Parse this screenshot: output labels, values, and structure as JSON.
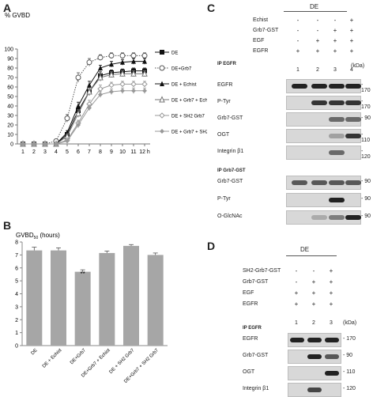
{
  "panels": {
    "a": "A",
    "b": "B",
    "c": "C",
    "d": "D"
  },
  "chartA": {
    "ylabel": "% GVBD",
    "yticks": [
      "0",
      "10",
      "20",
      "30",
      "40",
      "50",
      "60",
      "70",
      "80",
      "90",
      "100"
    ],
    "xticks": [
      "1",
      "2",
      "3",
      "4",
      "5",
      "6",
      "7",
      "8",
      "9",
      "10",
      "11",
      "12 h"
    ],
    "legend": [
      "DE",
      "DE+Grb7",
      "DE + Echist",
      "DE + Grb7 + Echist",
      "DE + SH2 Grb7",
      "DE + Grb7 + SH2 Grb7"
    ]
  },
  "chart_data": [
    {
      "type": "line",
      "x": [
        1,
        2,
        3,
        4,
        5,
        6,
        7,
        8,
        9,
        10,
        11,
        12
      ],
      "xlabel": "",
      "ylabel": "% GVBD",
      "ylim": [
        0,
        100
      ],
      "series": [
        {
          "name": "DE",
          "values": [
            0,
            0,
            0,
            0,
            10,
            35,
            55,
            72,
            75,
            76,
            77,
            77
          ],
          "color": "#111111",
          "marker": "square",
          "dash": "solid",
          "error": [
            0,
            0,
            0,
            0,
            2,
            4,
            4,
            4,
            3,
            3,
            3,
            3
          ]
        },
        {
          "name": "DE+Grb7",
          "values": [
            0,
            0,
            0,
            3,
            27,
            70,
            86,
            91,
            93,
            93,
            93,
            93
          ],
          "color": "#555555",
          "marker": "open-circle",
          "dash": "dotted",
          "error": [
            0,
            0,
            0,
            1,
            4,
            5,
            4,
            3,
            3,
            3,
            3,
            3
          ]
        },
        {
          "name": "DE + Echist",
          "values": [
            0,
            0,
            0,
            0,
            12,
            40,
            62,
            80,
            84,
            86,
            87,
            87
          ],
          "color": "#111111",
          "marker": "triangle",
          "dash": "solid",
          "error": [
            0,
            0,
            0,
            0,
            2,
            4,
            4,
            3,
            3,
            3,
            3,
            3
          ]
        },
        {
          "name": "DE + Grb7 + Echist",
          "values": [
            0,
            0,
            0,
            0,
            8,
            32,
            55,
            70,
            73,
            74,
            74,
            74
          ],
          "color": "#777777",
          "marker": "open-triangle",
          "dash": "solid",
          "error": [
            0,
            0,
            0,
            0,
            2,
            4,
            4,
            4,
            3,
            3,
            3,
            3
          ]
        },
        {
          "name": "DE + SH2 Grb7",
          "values": [
            0,
            0,
            0,
            0,
            4,
            22,
            42,
            58,
            62,
            63,
            63,
            63
          ],
          "color": "#999999",
          "marker": "open-diamond",
          "dash": "solid",
          "error": [
            0,
            0,
            0,
            0,
            2,
            3,
            4,
            4,
            3,
            3,
            3,
            3
          ]
        },
        {
          "name": "DE + Grb7 + SH2 Grb7",
          "values": [
            0,
            0,
            0,
            0,
            3,
            20,
            38,
            52,
            55,
            56,
            56,
            56
          ],
          "color": "#999999",
          "marker": "diamond",
          "dash": "solid",
          "error": [
            0,
            0,
            0,
            0,
            2,
            3,
            3,
            3,
            3,
            3,
            3,
            3
          ]
        }
      ]
    },
    {
      "type": "bar",
      "ylabel": "GVBD50 (hours)",
      "ylim": [
        0,
        8
      ],
      "yticks": [
        "0",
        "1",
        "2",
        "3",
        "4",
        "5",
        "6",
        "7",
        "8"
      ],
      "categories": [
        "DE",
        "DE + Echist",
        "DE+Grb7",
        "DE+Grb7 + Echist",
        "DE + SH2 Grb7",
        "DE+Grb7 + SH2 Grb7"
      ],
      "values": [
        7.35,
        7.35,
        5.7,
        7.15,
        7.7,
        7.0
      ],
      "error": [
        0.25,
        0.2,
        0.15,
        0.15,
        0.1,
        0.15
      ],
      "annotations": [
        {
          "category": "DE+Grb7",
          "text": "**"
        }
      ],
      "color": "#a6a6a6"
    }
  ],
  "chartB": {
    "ylabel_main": "GVBD",
    "ylabel_sub": "50",
    "ylabel_unit": " (hours)",
    "sig": "**"
  },
  "blotC": {
    "header": "DE",
    "kda": "(kDa)",
    "treatments": [
      {
        "label": "Echist",
        "signs": [
          "-",
          "-",
          "-",
          "+"
        ]
      },
      {
        "label": "Grb7-GST",
        "signs": [
          "-",
          "-",
          "+",
          "+"
        ]
      },
      {
        "label": "EGF",
        "signs": [
          "-",
          "+",
          "+",
          "+"
        ]
      },
      {
        "label": "EGFR",
        "signs": [
          "+",
          "+",
          "+",
          "+"
        ]
      }
    ],
    "ip1": "IP EGFR",
    "lanes": [
      "1",
      "2",
      "3",
      "4"
    ],
    "rows1": [
      {
        "label": "EGFR",
        "mw": "- 170"
      },
      {
        "label": "P-Tyr",
        "mw": "- 170"
      },
      {
        "label": "Grb7-GST",
        "mw": "- 90"
      },
      {
        "label": "OGT",
        "mw": "- 110"
      },
      {
        "label": "Integrin β1",
        "mw": "- 120"
      }
    ],
    "ip2": "IP Grb7-GST",
    "rows2": [
      {
        "label": "Grb7-GST",
        "mw": "- 90"
      },
      {
        "label": "P-Tyr",
        "mw": "- 90"
      },
      {
        "label": "O-GlcNAc",
        "mw": "- 90"
      }
    ]
  },
  "blotD": {
    "header": "DE",
    "kda": "(kDa)",
    "treatments": [
      {
        "label": "SH2-Grb7-GST",
        "signs": [
          "-",
          "-",
          "+"
        ]
      },
      {
        "label": "Grb7-GST",
        "signs": [
          "-",
          "+",
          "+"
        ]
      },
      {
        "label": "EGF",
        "signs": [
          "+",
          "+",
          "+"
        ]
      },
      {
        "label": "EGFR",
        "signs": [
          "+",
          "+",
          "+"
        ]
      }
    ],
    "ip": "IP EGFR",
    "lanes": [
      "1",
      "2",
      "3"
    ],
    "rows": [
      {
        "label": "EGFR",
        "mw": "- 170"
      },
      {
        "label": "Grb7-GST",
        "mw": "- 90"
      },
      {
        "label": "OGT",
        "mw": "- 110"
      },
      {
        "label": "Integrin β1",
        "mw": "- 120"
      }
    ]
  }
}
